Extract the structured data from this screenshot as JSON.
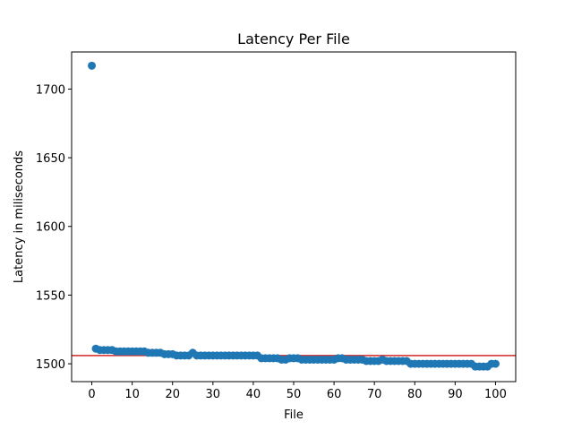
{
  "chart_data": {
    "type": "scatter",
    "title": "Latency Per File",
    "xlabel": "File",
    "ylabel": "Latency in miliseconds",
    "xlim": [
      -5,
      105
    ],
    "ylim": [
      1487,
      1727
    ],
    "xticks": [
      0,
      10,
      20,
      30,
      40,
      50,
      60,
      70,
      80,
      90,
      100
    ],
    "yticks": [
      1500,
      1550,
      1600,
      1650,
      1700
    ],
    "grid": false,
    "point_color": "#1f77b4",
    "reference_line": {
      "y": 1506,
      "color": "#d62728"
    },
    "x": [
      0,
      1,
      2,
      3,
      4,
      5,
      6,
      7,
      8,
      9,
      10,
      11,
      12,
      13,
      14,
      15,
      16,
      17,
      18,
      19,
      20,
      21,
      22,
      23,
      24,
      25,
      26,
      27,
      28,
      29,
      30,
      31,
      32,
      33,
      34,
      35,
      36,
      37,
      38,
      39,
      40,
      41,
      42,
      43,
      44,
      45,
      46,
      47,
      48,
      49,
      50,
      51,
      52,
      53,
      54,
      55,
      56,
      57,
      58,
      59,
      60,
      61,
      62,
      63,
      64,
      65,
      66,
      67,
      68,
      69,
      70,
      71,
      72,
      73,
      74,
      75,
      76,
      77,
      78,
      79,
      80,
      81,
      82,
      83,
      84,
      85,
      86,
      87,
      88,
      89,
      90,
      91,
      92,
      93,
      94,
      95,
      96,
      97,
      98,
      99,
      100
    ],
    "y": [
      1717,
      1511,
      1510,
      1510,
      1510,
      1510,
      1509,
      1509,
      1509,
      1509,
      1509,
      1509,
      1509,
      1509,
      1508,
      1508,
      1508,
      1508,
      1507,
      1507,
      1507,
      1506,
      1506,
      1506,
      1506,
      1508,
      1506,
      1506,
      1506,
      1506,
      1506,
      1506,
      1506,
      1506,
      1506,
      1506,
      1506,
      1506,
      1506,
      1506,
      1506,
      1506,
      1504,
      1504,
      1504,
      1504,
      1504,
      1503,
      1503,
      1504,
      1504,
      1504,
      1503,
      1503,
      1503,
      1503,
      1503,
      1503,
      1503,
      1503,
      1503,
      1504,
      1504,
      1503,
      1503,
      1503,
      1503,
      1503,
      1502,
      1502,
      1502,
      1502,
      1503,
      1502,
      1502,
      1502,
      1502,
      1502,
      1502,
      1500,
      1500,
      1500,
      1500,
      1500,
      1500,
      1500,
      1500,
      1500,
      1500,
      1500,
      1500,
      1500,
      1500,
      1500,
      1500,
      1498,
      1498,
      1498,
      1498,
      1500,
      1500
    ]
  }
}
